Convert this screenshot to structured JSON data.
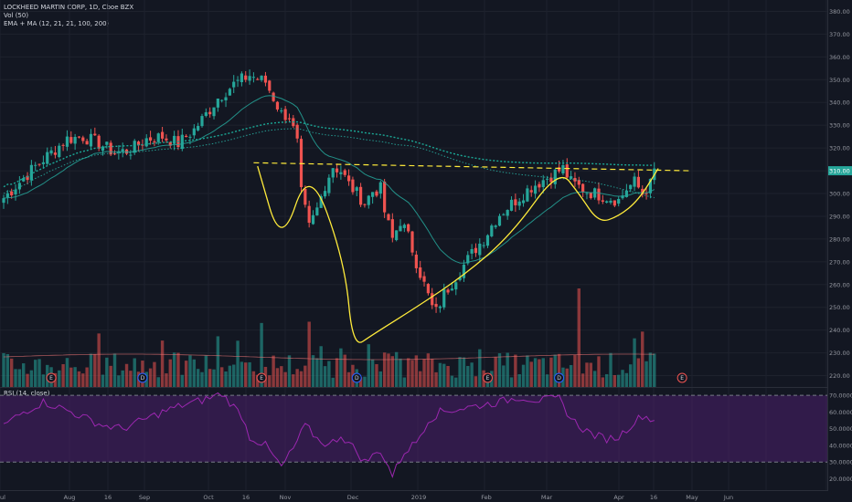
{
  "header": {
    "symbol_line": "LOCKHEED MARTIN CORP, 1D, Cboe BZX",
    "volume_line": "Vol (50)",
    "ema_line": "EMA + MA (12, 21, 21, 100, 200)"
  },
  "rsi_label": "RSI (14, close)",
  "colors": {
    "background": "#131722",
    "up": "#26a69a",
    "down": "#ef5350",
    "annotation": "#ffeb3b",
    "rsi_line": "#9c27b0",
    "ema_teal": "#26a69a",
    "price_badge": "#26a69a"
  },
  "chart_data": [
    {
      "type": "candlestick",
      "title": "LOCKHEED MARTIN CORP, 1D, Cboe BZX",
      "x_ticks": [
        "Jul",
        "Aug",
        "16",
        "Sep",
        "Oct",
        "16",
        "Nov",
        "Dec",
        "2019",
        "Feb",
        "Mar",
        "Apr",
        "16",
        "May",
        "Jun"
      ],
      "y_ticks": [
        220,
        230,
        240,
        250,
        260,
        270,
        280,
        290,
        300,
        310,
        320,
        330,
        340,
        350,
        360,
        370,
        380
      ],
      "ylim": [
        215,
        383
      ],
      "last_price": 310,
      "close_path": [
        [
          0,
          298
        ],
        [
          4,
          305
        ],
        [
          8,
          312
        ],
        [
          12,
          318
        ],
        [
          16,
          324
        ],
        [
          20,
          325
        ],
        [
          24,
          322
        ],
        [
          28,
          318
        ],
        [
          32,
          319
        ],
        [
          36,
          324
        ],
        [
          40,
          325
        ],
        [
          44,
          322
        ],
        [
          48,
          328
        ],
        [
          52,
          337
        ],
        [
          54,
          342
        ],
        [
          58,
          348
        ],
        [
          62,
          352
        ],
        [
          66,
          349
        ],
        [
          70,
          335
        ],
        [
          72,
          334
        ],
        [
          74,
          322
        ],
        [
          75,
          300
        ],
        [
          77,
          285
        ],
        [
          79,
          293
        ],
        [
          81,
          304
        ],
        [
          83,
          312
        ],
        [
          85,
          310
        ],
        [
          87,
          304
        ],
        [
          89,
          300
        ],
        [
          91,
          296
        ],
        [
          93,
          301
        ],
        [
          95,
          302
        ],
        [
          96,
          292
        ],
        [
          98,
          280
        ],
        [
          100,
          288
        ],
        [
          102,
          281
        ],
        [
          104,
          270
        ],
        [
          106,
          260
        ],
        [
          108,
          250
        ],
        [
          109,
          248
        ],
        [
          111,
          256
        ],
        [
          113,
          261
        ],
        [
          115,
          266
        ],
        [
          117,
          271
        ],
        [
          119,
          276
        ],
        [
          121,
          280
        ],
        [
          123,
          286
        ],
        [
          125,
          291
        ],
        [
          127,
          294
        ],
        [
          129,
          297
        ],
        [
          131,
          300
        ],
        [
          133,
          303
        ],
        [
          135,
          305
        ],
        [
          137,
          307
        ],
        [
          139,
          309
        ],
        [
          141,
          311
        ],
        [
          143,
          305
        ],
        [
          145,
          303
        ],
        [
          147,
          301
        ],
        [
          149,
          300
        ],
        [
          151,
          299
        ],
        [
          153,
          298
        ],
        [
          155,
          297
        ],
        [
          157,
          302
        ],
        [
          159,
          305
        ],
        [
          161,
          300
        ],
        [
          163,
          304
        ],
        [
          164,
          310
        ]
      ],
      "annotations": {
        "neckline": [
          [
            63,
            313.5
          ],
          [
            173,
            310
          ]
        ],
        "shape_points": [
          [
            64,
            312
          ],
          [
            70,
            276
          ],
          [
            77,
            313
          ],
          [
            86,
            270
          ],
          [
            88,
            232
          ],
          [
            93,
            238
          ],
          [
            104,
            250
          ],
          [
            116,
            264
          ],
          [
            128,
            282
          ],
          [
            140,
            311
          ],
          [
            145,
            300
          ],
          [
            150,
            287
          ],
          [
            155,
            290
          ],
          [
            160,
            297
          ],
          [
            165,
            311
          ]
        ]
      }
    },
    {
      "type": "bar",
      "title": "Vol (50)",
      "events": [
        {
          "x": 12,
          "label": "E"
        },
        {
          "x": 35,
          "label": "D"
        },
        {
          "x": 65,
          "label": "E"
        },
        {
          "x": 89,
          "label": "D"
        },
        {
          "x": 122,
          "label": "E"
        },
        {
          "x": 140,
          "label": "D"
        },
        {
          "x": 171,
          "label": "E"
        }
      ]
    },
    {
      "type": "line",
      "title": "RSI (14, close)",
      "y_ticks": [
        20,
        30,
        40,
        50,
        60,
        70
      ],
      "ylim": [
        17,
        75
      ],
      "bands": [
        30,
        70
      ],
      "path": [
        [
          0,
          52
        ],
        [
          5,
          60
        ],
        [
          10,
          66
        ],
        [
          15,
          62
        ],
        [
          20,
          57
        ],
        [
          25,
          52
        ],
        [
          30,
          50
        ],
        [
          35,
          55
        ],
        [
          40,
          60
        ],
        [
          45,
          64
        ],
        [
          50,
          67
        ],
        [
          55,
          71
        ],
        [
          60,
          58
        ],
        [
          62,
          45
        ],
        [
          66,
          40
        ],
        [
          70,
          27
        ],
        [
          73,
          38
        ],
        [
          76,
          52
        ],
        [
          79,
          44
        ],
        [
          82,
          40
        ],
        [
          85,
          46
        ],
        [
          88,
          39
        ],
        [
          91,
          30
        ],
        [
          95,
          37
        ],
        [
          98,
          22
        ],
        [
          101,
          36
        ],
        [
          104,
          42
        ],
        [
          107,
          55
        ],
        [
          110,
          60
        ],
        [
          115,
          62
        ],
        [
          120,
          64
        ],
        [
          125,
          66
        ],
        [
          130,
          69
        ],
        [
          135,
          67
        ],
        [
          140,
          68
        ],
        [
          143,
          56
        ],
        [
          146,
          50
        ],
        [
          149,
          46
        ],
        [
          152,
          44
        ],
        [
          155,
          45
        ],
        [
          158,
          52
        ],
        [
          161,
          58
        ],
        [
          164,
          55
        ]
      ]
    }
  ]
}
